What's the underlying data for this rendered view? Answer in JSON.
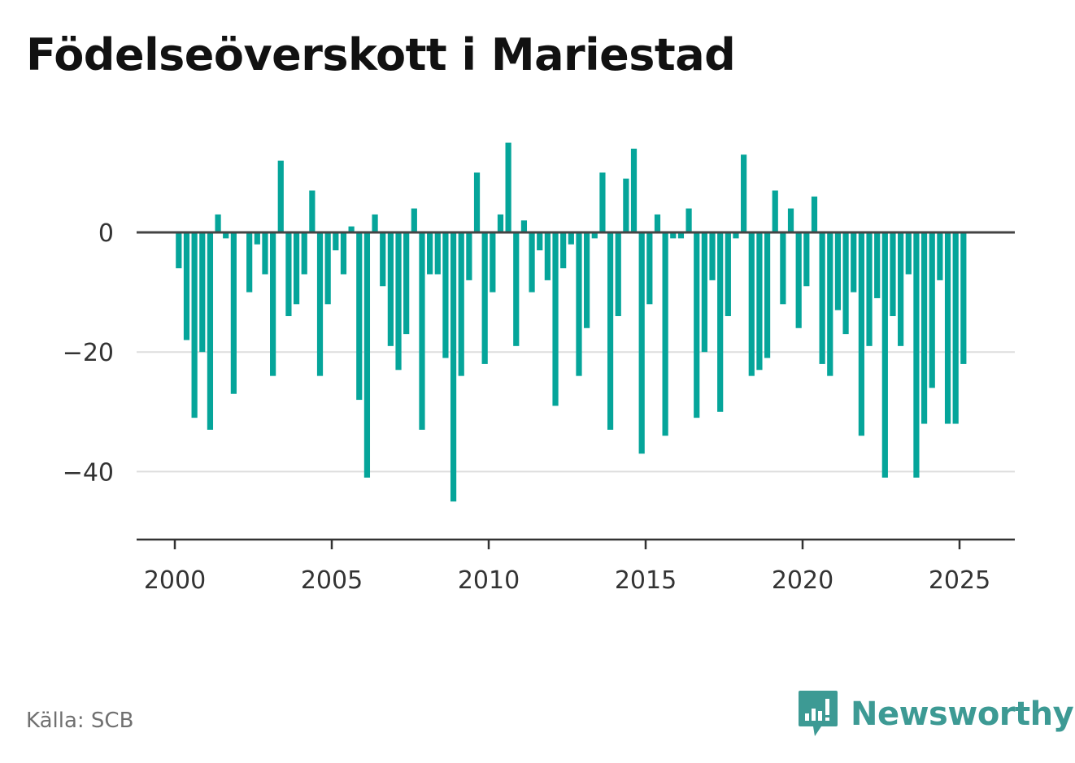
{
  "title": "Födelseöverskott i Mariestad",
  "source": "Källa: SCB",
  "brand": {
    "name": "Newsworthy",
    "icon": "newsworthy-logo-icon",
    "color": "#3d9a94"
  },
  "colors": {
    "bar": "#05a59a",
    "zero_line": "#444444",
    "grid": "#dddddd",
    "axis": "#333333"
  },
  "chart_data": {
    "type": "bar",
    "title": "Födelseöverskott i Mariestad",
    "xlabel": "",
    "ylabel": "",
    "frequency": "quarterly",
    "start": "2000-Q1",
    "values": [
      -6,
      -18,
      -31,
      -20,
      -33,
      3,
      -1,
      -27,
      0,
      -10,
      -2,
      -7,
      -24,
      12,
      -14,
      -12,
      -7,
      7,
      -24,
      -12,
      -3,
      -7,
      1,
      -28,
      -41,
      3,
      -9,
      -19,
      -23,
      -17,
      4,
      -33,
      -7,
      -7,
      -21,
      -45,
      -24,
      -8,
      10,
      -22,
      -10,
      3,
      15,
      -19,
      2,
      -10,
      -3,
      -8,
      -29,
      -6,
      -2,
      -24,
      -16,
      -1,
      10,
      -33,
      -14,
      9,
      14,
      -37,
      -12,
      3,
      -34,
      -1,
      -1,
      4,
      -31,
      -20,
      -8,
      -30,
      -14,
      -1,
      13,
      -24,
      -23,
      -21,
      7,
      -12,
      4,
      -16,
      -9,
      6,
      -22,
      -24,
      -13,
      -17,
      -10,
      -34,
      -19,
      -11,
      -41,
      -14,
      -19,
      -7,
      -41,
      -32,
      -26,
      -8,
      -32,
      -32,
      -22
    ],
    "x_ticks": [
      "2000",
      "2005",
      "2010",
      "2015",
      "2020",
      "2025"
    ],
    "y_ticks": [
      "0",
      "−20",
      "−40"
    ],
    "ylim": [
      -52,
      16
    ],
    "grid": true
  }
}
